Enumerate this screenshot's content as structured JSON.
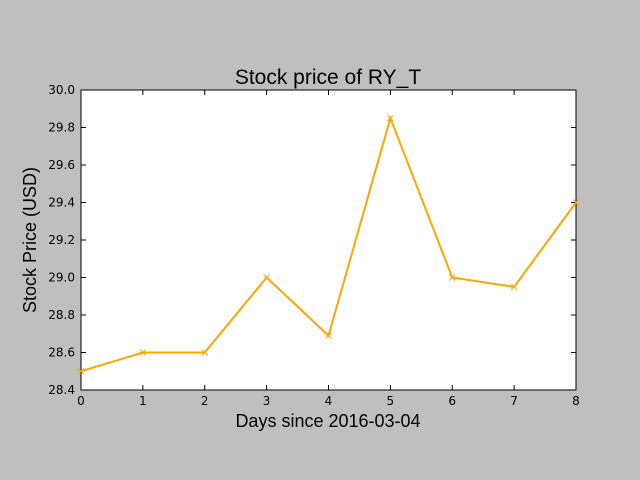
{
  "chart_data": {
    "type": "line",
    "title": "Stock price of RY_T",
    "xlabel": "Days since 2016-03-04",
    "ylabel": "Stock Price (USD)",
    "x": [
      0,
      1,
      2,
      3,
      4,
      5,
      6,
      7,
      8
    ],
    "series": [
      {
        "values": [
          28.5,
          28.6,
          28.6,
          29.0,
          28.69,
          29.85,
          29.0,
          28.95,
          29.4
        ],
        "color": "#ffa500",
        "marker": "x"
      }
    ],
    "xlim": [
      0,
      8
    ],
    "ylim": [
      28.4,
      30.0
    ],
    "xticks": [
      "0",
      "1",
      "2",
      "3",
      "4",
      "5",
      "6",
      "7",
      "8"
    ],
    "yticks": [
      "28.4",
      "28.6",
      "28.8",
      "29.0",
      "29.2",
      "29.4",
      "29.6",
      "29.8",
      "30.0"
    ],
    "grid": false,
    "background_color": "#bfbfbf",
    "plot_background_color": "#ffffff"
  }
}
